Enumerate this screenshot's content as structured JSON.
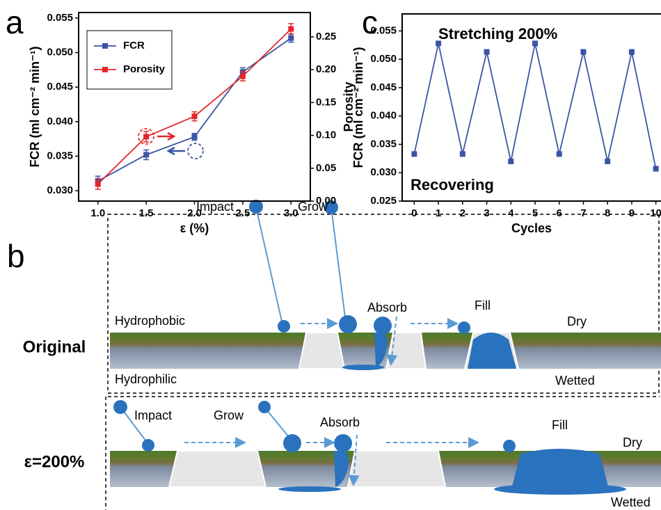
{
  "chart_data": [
    {
      "panel": "a",
      "type": "line",
      "x": [
        1,
        1.5,
        2,
        2.5,
        3
      ],
      "xlim": [
        0.8,
        3.2
      ],
      "xticks": [
        {
          "value": 1,
          "label": "1.0"
        },
        {
          "value": 1.5,
          "label": "1.5"
        },
        {
          "value": 2,
          "label": "2.0"
        },
        {
          "value": 2.5,
          "label": "2.5"
        },
        {
          "value": 3,
          "label": "3.0"
        }
      ],
      "xlabel": "ε (%)",
      "ylabel": "FCR (ml cm⁻² min⁻¹)",
      "y2label": "Porosity",
      "ylim": [
        0.0285,
        0.0558
      ],
      "yticks": [
        {
          "value": 0.03,
          "label": "0.030"
        },
        {
          "value": 0.035,
          "label": "0.035"
        },
        {
          "value": 0.04,
          "label": "0.040"
        },
        {
          "value": 0.045,
          "label": "0.045"
        },
        {
          "value": 0.05,
          "label": "0.050"
        },
        {
          "value": 0.055,
          "label": "0.055"
        }
      ],
      "y2lim": [
        0,
        0.287
      ],
      "y2ticks": [
        {
          "value": 0,
          "label": "0.00"
        },
        {
          "value": 0.05,
          "label": "0.05"
        },
        {
          "value": 0.1,
          "label": "0.10"
        },
        {
          "value": 0.15,
          "label": "0.15"
        },
        {
          "value": 0.2,
          "label": "0.20"
        },
        {
          "value": 0.25,
          "label": "0.25"
        }
      ],
      "legend": "upper left",
      "series": [
        {
          "name": "FCR",
          "color": "#3a53a4",
          "values": [
            0.0314,
            0.0352,
            0.0378,
            0.0472,
            0.0521
          ],
          "errors": [
            0.0007,
            0.0007,
            0.0005,
            0.0006,
            0.0006
          ]
        },
        {
          "name": "Porosity",
          "color": "#e3262a",
          "axis": "y2",
          "values": [
            0.026,
            0.098,
            0.129,
            0.19,
            0.262
          ],
          "errors": [
            0.008,
            0.008,
            0.007,
            0.007,
            0.008
          ]
        }
      ]
    },
    {
      "panel": "c",
      "type": "line",
      "x": [
        0,
        1,
        2,
        3,
        4,
        5,
        6,
        7,
        8,
        9,
        10
      ],
      "xlim": [
        -0.5,
        10.5
      ],
      "xticks": [
        0,
        1,
        2,
        3,
        4,
        5,
        6,
        7,
        8,
        9,
        10
      ],
      "xlabel": "Cycles",
      "ylabel": "FCR (ml cm⁻² min⁻¹)",
      "ylim": [
        0.025,
        0.058
      ],
      "yticks": [
        {
          "value": 0.025,
          "label": "0.025"
        },
        {
          "value": 0.03,
          "label": "0.030"
        },
        {
          "value": 0.035,
          "label": "0.035"
        },
        {
          "value": 0.04,
          "label": "0.040"
        },
        {
          "value": 0.045,
          "label": "0.045"
        },
        {
          "value": 0.05,
          "label": "0.050"
        },
        {
          "value": 0.055,
          "label": "0.055"
        }
      ],
      "annotations": [
        "Stretching 200%",
        "Recovering"
      ],
      "series": [
        {
          "color": "#3a53a4",
          "values": [
            0.0333,
            0.0528,
            0.0333,
            0.0513,
            0.032,
            0.0528,
            0.0333,
            0.0513,
            0.032,
            0.0513,
            0.0307
          ]
        }
      ]
    }
  ],
  "diagram": {
    "panel": "b",
    "rows": [
      {
        "label": "Original",
        "texts": [
          "Impact",
          "Grow",
          "Absorb",
          "Fill",
          "Hydrophobic",
          "Dry",
          "Hydrophilic",
          "Wetted"
        ]
      },
      {
        "label": "ε=200%",
        "texts": [
          "Impact",
          "Grow",
          "Absorb",
          "Fill",
          "Dry",
          "Wetted"
        ]
      }
    ]
  }
}
